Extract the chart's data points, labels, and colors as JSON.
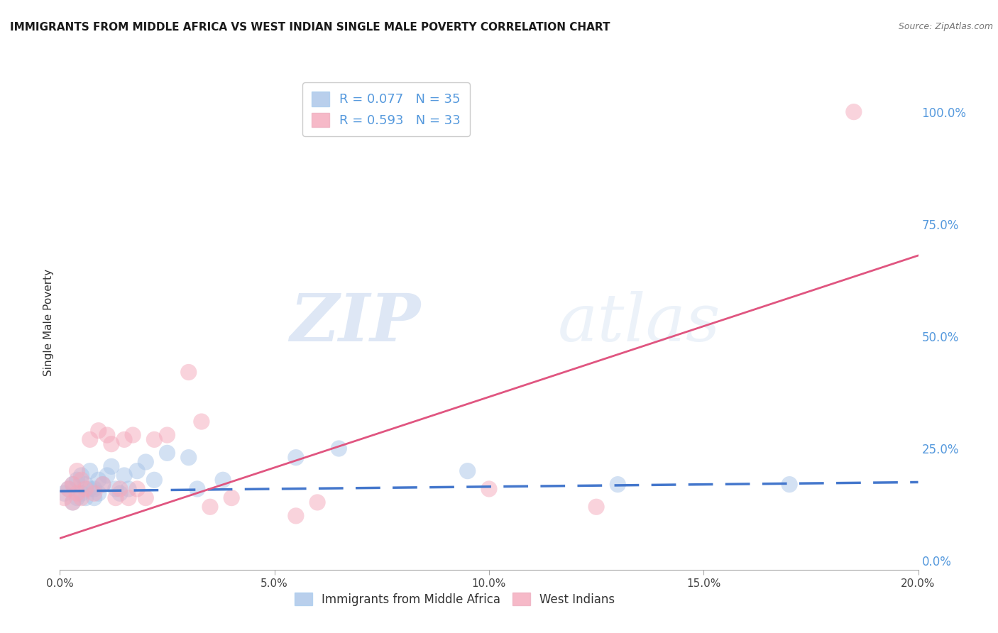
{
  "title": "IMMIGRANTS FROM MIDDLE AFRICA VS WEST INDIAN SINGLE MALE POVERTY CORRELATION CHART",
  "source": "Source: ZipAtlas.com",
  "ylabel": "Single Male Poverty",
  "xlim": [
    0.0,
    0.2
  ],
  "ylim": [
    -0.02,
    1.08
  ],
  "blue_R": "0.077",
  "blue_N": "35",
  "pink_R": "0.593",
  "pink_N": "33",
  "legend_label_blue": "Immigrants from Middle Africa",
  "legend_label_pink": "West Indians",
  "blue_color": "#a8c4e8",
  "pink_color": "#f4a8bb",
  "blue_line_color": "#4477cc",
  "pink_line_color": "#e05580",
  "blue_scatter_x": [
    0.001,
    0.002,
    0.003,
    0.003,
    0.004,
    0.004,
    0.005,
    0.005,
    0.006,
    0.006,
    0.007,
    0.007,
    0.008,
    0.008,
    0.009,
    0.009,
    0.01,
    0.011,
    0.012,
    0.013,
    0.014,
    0.015,
    0.016,
    0.018,
    0.02,
    0.022,
    0.025,
    0.03,
    0.032,
    0.038,
    0.055,
    0.065,
    0.095,
    0.13,
    0.17
  ],
  "blue_scatter_y": [
    0.15,
    0.16,
    0.13,
    0.17,
    0.14,
    0.18,
    0.15,
    0.19,
    0.14,
    0.17,
    0.16,
    0.2,
    0.14,
    0.16,
    0.15,
    0.18,
    0.17,
    0.19,
    0.21,
    0.16,
    0.15,
    0.19,
    0.16,
    0.2,
    0.22,
    0.18,
    0.24,
    0.23,
    0.16,
    0.18,
    0.23,
    0.25,
    0.2,
    0.17,
    0.17
  ],
  "pink_scatter_x": [
    0.001,
    0.002,
    0.003,
    0.003,
    0.004,
    0.004,
    0.005,
    0.005,
    0.006,
    0.007,
    0.008,
    0.009,
    0.01,
    0.011,
    0.012,
    0.013,
    0.014,
    0.015,
    0.016,
    0.017,
    0.018,
    0.02,
    0.022,
    0.025,
    0.03,
    0.033,
    0.035,
    0.04,
    0.055,
    0.06,
    0.1,
    0.125,
    0.185
  ],
  "pink_scatter_y": [
    0.14,
    0.16,
    0.13,
    0.17,
    0.15,
    0.2,
    0.14,
    0.18,
    0.16,
    0.27,
    0.15,
    0.29,
    0.17,
    0.28,
    0.26,
    0.14,
    0.16,
    0.27,
    0.14,
    0.28,
    0.16,
    0.14,
    0.27,
    0.28,
    0.42,
    0.31,
    0.12,
    0.14,
    0.1,
    0.13,
    0.16,
    0.12,
    1.0
  ],
  "blue_line_x": [
    0.0,
    0.2
  ],
  "blue_line_y": [
    0.155,
    0.175
  ],
  "pink_line_x": [
    0.0,
    0.2
  ],
  "pink_line_y": [
    0.05,
    0.68
  ],
  "watermark_zip": "ZIP",
  "watermark_atlas": "atlas",
  "background_color": "#ffffff",
  "grid_color": "#cccccc",
  "right_tick_color": "#5599dd",
  "ytick_values": [
    0.0,
    0.25,
    0.5,
    0.75,
    1.0
  ],
  "ytick_labels": [
    "0.0%",
    "25.0%",
    "50.0%",
    "75.0%",
    "100.0%"
  ],
  "xtick_values": [
    0.0,
    0.05,
    0.1,
    0.15,
    0.2
  ],
  "xtick_labels": [
    "0.0%",
    "5.0%",
    "10.0%",
    "15.0%",
    "20.0%"
  ]
}
